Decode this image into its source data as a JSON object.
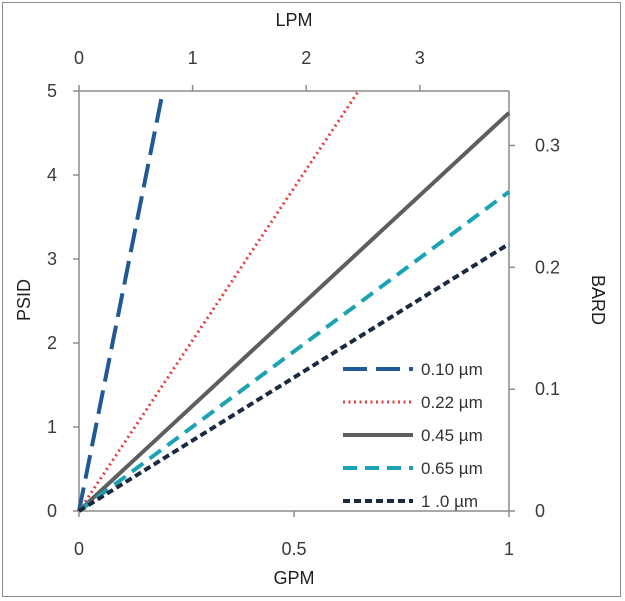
{
  "chart_data": {
    "type": "line",
    "title": "",
    "xlabel": "GPM",
    "ylabel": "PSID",
    "x2label": "LPM",
    "y2label": "BARD",
    "xlim": [
      0,
      1
    ],
    "ylim": [
      0,
      5
    ],
    "x2lim": [
      0,
      3.785
    ],
    "y2lim": [
      0,
      0.3447
    ],
    "x_ticks": [
      0,
      0.5,
      1
    ],
    "x_tick_labels": [
      "0",
      "0.5",
      "1"
    ],
    "y_ticks": [
      0,
      1,
      2,
      3,
      4,
      5
    ],
    "y_tick_labels": [
      "0",
      "1",
      "2",
      "3",
      "4",
      "5"
    ],
    "x2_ticks": [
      0,
      1,
      2,
      3
    ],
    "x2_tick_labels": [
      "0",
      "1",
      "2",
      "3"
    ],
    "y2_ticks": [
      0,
      0.1,
      0.2,
      0.3
    ],
    "y2_tick_labels": [
      "0",
      "0.1",
      "0.2",
      "0.3"
    ],
    "grid": false,
    "legend_position": "bottom-right",
    "series": [
      {
        "name": "0.10 µm",
        "x": [
          0,
          0.195
        ],
        "y": [
          0,
          5.0
        ],
        "color": "#1f5a96",
        "dash": "24,9",
        "width": 4
      },
      {
        "name": "0.22 µm",
        "x": [
          0,
          0.65
        ],
        "y": [
          0,
          5.0
        ],
        "color": "#e0403a",
        "dash": "2,3.5",
        "width": 3
      },
      {
        "name": "0.45 µm",
        "x": [
          0,
          1.0
        ],
        "y": [
          0,
          4.74
        ],
        "color": "#5e5e5e",
        "dash": "",
        "width": 4
      },
      {
        "name": "0.65 µm",
        "x": [
          0,
          1.0
        ],
        "y": [
          0,
          3.8
        ],
        "color": "#1ba3b3",
        "dash": "14,8",
        "width": 4
      },
      {
        "name": "1 .0 µm",
        "x": [
          0,
          1.0
        ],
        "y": [
          0,
          3.18
        ],
        "color": "#1c2a40",
        "dash": "7,4",
        "width": 4
      }
    ]
  }
}
